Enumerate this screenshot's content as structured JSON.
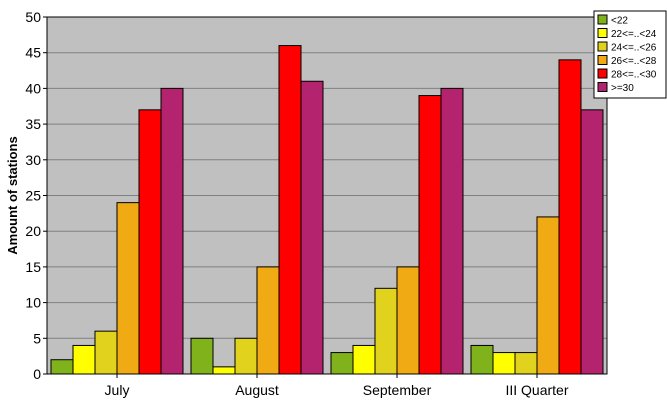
{
  "chart_data": {
    "type": "bar",
    "title": "",
    "xlabel": "",
    "ylabel": "Amount of stations",
    "ylim": [
      0,
      50
    ],
    "yticks": [
      0,
      5,
      10,
      15,
      20,
      25,
      30,
      35,
      40,
      45,
      50
    ],
    "grid": true,
    "legend_position": "top-right",
    "categories": [
      "July",
      "August",
      "September",
      "III Quarter"
    ],
    "series": [
      {
        "name": "<22",
        "color": "#7FB21B",
        "values": [
          2,
          5,
          3,
          4
        ]
      },
      {
        "name": "22<=..<24",
        "color": "#FFFF00",
        "values": [
          4,
          1,
          4,
          3
        ]
      },
      {
        "name": "24<=..<26",
        "color": "#E1D21E",
        "values": [
          6,
          5,
          12,
          3
        ]
      },
      {
        "name": "26<=..<28",
        "color": "#F0AA14",
        "values": [
          24,
          15,
          15,
          22
        ]
      },
      {
        "name": "28<=..<30",
        "color": "#FF0000",
        "values": [
          37,
          46,
          39,
          44
        ]
      },
      {
        "name": ">=30",
        "color": "#B4236E",
        "values": [
          40,
          41,
          40,
          37
        ]
      }
    ],
    "colors": {
      "plot_background": "#C0C0C0",
      "grid": "#808080"
    }
  }
}
